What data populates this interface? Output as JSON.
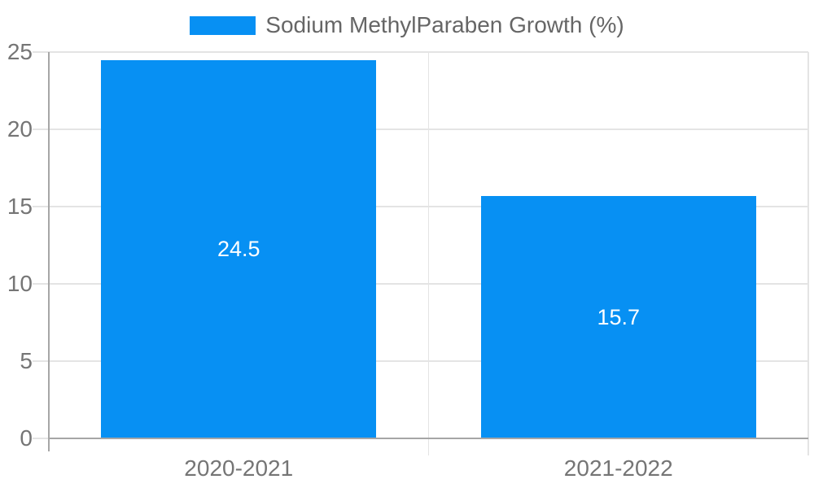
{
  "chart_data": {
    "type": "bar",
    "title": "",
    "categories": [
      "2020-2021",
      "2021-2022"
    ],
    "series": [
      {
        "name": "Sodium MethylParaben Growth (%)",
        "values": [
          24.5,
          15.7
        ]
      }
    ],
    "data_labels": [
      "24.5",
      "15.7"
    ],
    "y_ticks": [
      0,
      5,
      10,
      15,
      20,
      25
    ],
    "ylim": [
      0,
      25
    ],
    "xlabel": "",
    "ylabel": "",
    "grid": true,
    "legend_position": "top-center",
    "colors": {
      "bar": "#0790F3",
      "bar_label": "#ffffff",
      "grid_line": "#e4e4e4",
      "axis_line": "#a6a6a6",
      "tick_label": "#757575",
      "legend_text": "#666666",
      "background": "#ffffff"
    }
  }
}
